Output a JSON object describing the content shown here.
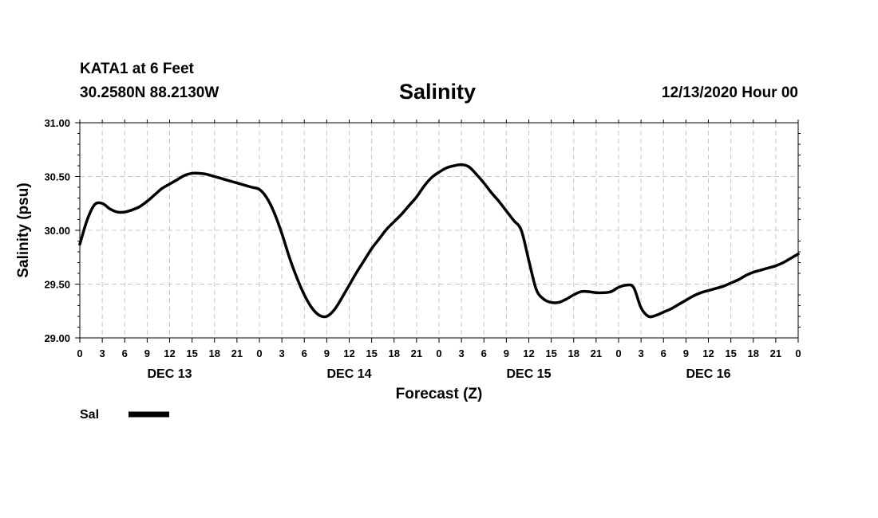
{
  "header": {
    "station": "KATA1 at 6 Feet",
    "coords": "30.2580N 88.2130W",
    "title": "Salinity",
    "datestamp": "12/13/2020 Hour 00"
  },
  "chart_data": {
    "type": "line",
    "title": "Salinity",
    "xlabel": "Forecast (Z)",
    "ylabel": "Salinity (psu)",
    "ylim": [
      29.0,
      31.0
    ],
    "xlim": [
      0,
      96
    ],
    "grid": true,
    "y_ticks": [
      "29.00",
      "29.50",
      "30.00",
      "30.50",
      "31.00"
    ],
    "x_tick_labels": [
      "0",
      "3",
      "6",
      "9",
      "12",
      "15",
      "18",
      "21",
      "0",
      "3",
      "6",
      "9",
      "12",
      "15",
      "18",
      "21",
      "0",
      "3",
      "6",
      "9",
      "12",
      "15",
      "18",
      "21",
      "0",
      "3",
      "6",
      "9",
      "12",
      "15",
      "18",
      "21",
      "0"
    ],
    "day_labels": [
      "DEC 13",
      "DEC 14",
      "DEC 15",
      "DEC 16"
    ],
    "legend": {
      "position": "bottom-left",
      "entries": [
        {
          "name": "Sal",
          "color": "#000000"
        }
      ]
    },
    "series": [
      {
        "name": "Sal",
        "color": "#000000",
        "x": [
          0,
          1,
          2,
          3,
          4,
          5,
          6,
          7,
          8,
          9,
          10,
          11,
          12,
          13,
          14,
          15,
          16,
          17,
          18,
          19,
          20,
          21,
          22,
          23,
          24,
          25,
          26,
          27,
          28,
          29,
          30,
          31,
          32,
          33,
          34,
          35,
          36,
          37,
          38,
          39,
          40,
          41,
          42,
          43,
          44,
          45,
          46,
          47,
          48,
          49,
          50,
          51,
          52,
          53,
          54,
          55,
          56,
          57,
          58,
          59,
          60,
          61,
          62,
          63,
          64,
          65,
          66,
          67,
          68,
          69,
          70,
          71,
          72,
          73,
          74,
          75,
          76,
          77,
          78,
          79,
          80,
          81,
          82,
          83,
          84,
          85,
          86,
          87,
          88,
          89,
          90,
          91,
          92,
          93,
          94,
          95,
          96
        ],
        "values": [
          29.87,
          30.1,
          30.24,
          30.25,
          30.2,
          30.17,
          30.17,
          30.19,
          30.22,
          30.27,
          30.33,
          30.39,
          30.43,
          30.47,
          30.51,
          30.53,
          30.53,
          30.52,
          30.5,
          30.48,
          30.46,
          30.44,
          30.42,
          30.4,
          30.38,
          30.3,
          30.16,
          29.97,
          29.75,
          29.56,
          29.4,
          29.28,
          29.21,
          29.2,
          29.26,
          29.37,
          29.49,
          29.61,
          29.72,
          29.83,
          29.92,
          30.01,
          30.08,
          30.15,
          30.23,
          30.31,
          30.41,
          30.49,
          30.54,
          30.58,
          30.6,
          30.61,
          30.59,
          30.52,
          30.44,
          30.35,
          30.27,
          30.18,
          30.09,
          30.0,
          29.72,
          29.45,
          29.36,
          29.33,
          29.33,
          29.36,
          29.4,
          29.43,
          29.43,
          29.42,
          29.42,
          29.43,
          29.47,
          29.49,
          29.47,
          29.28,
          29.2,
          29.21,
          29.24,
          29.27,
          29.31,
          29.35,
          29.39,
          29.42,
          29.44,
          29.46,
          29.48,
          29.51,
          29.54,
          29.58,
          29.61,
          29.63,
          29.65,
          29.67,
          29.7,
          29.74,
          29.78
        ]
      }
    ]
  }
}
